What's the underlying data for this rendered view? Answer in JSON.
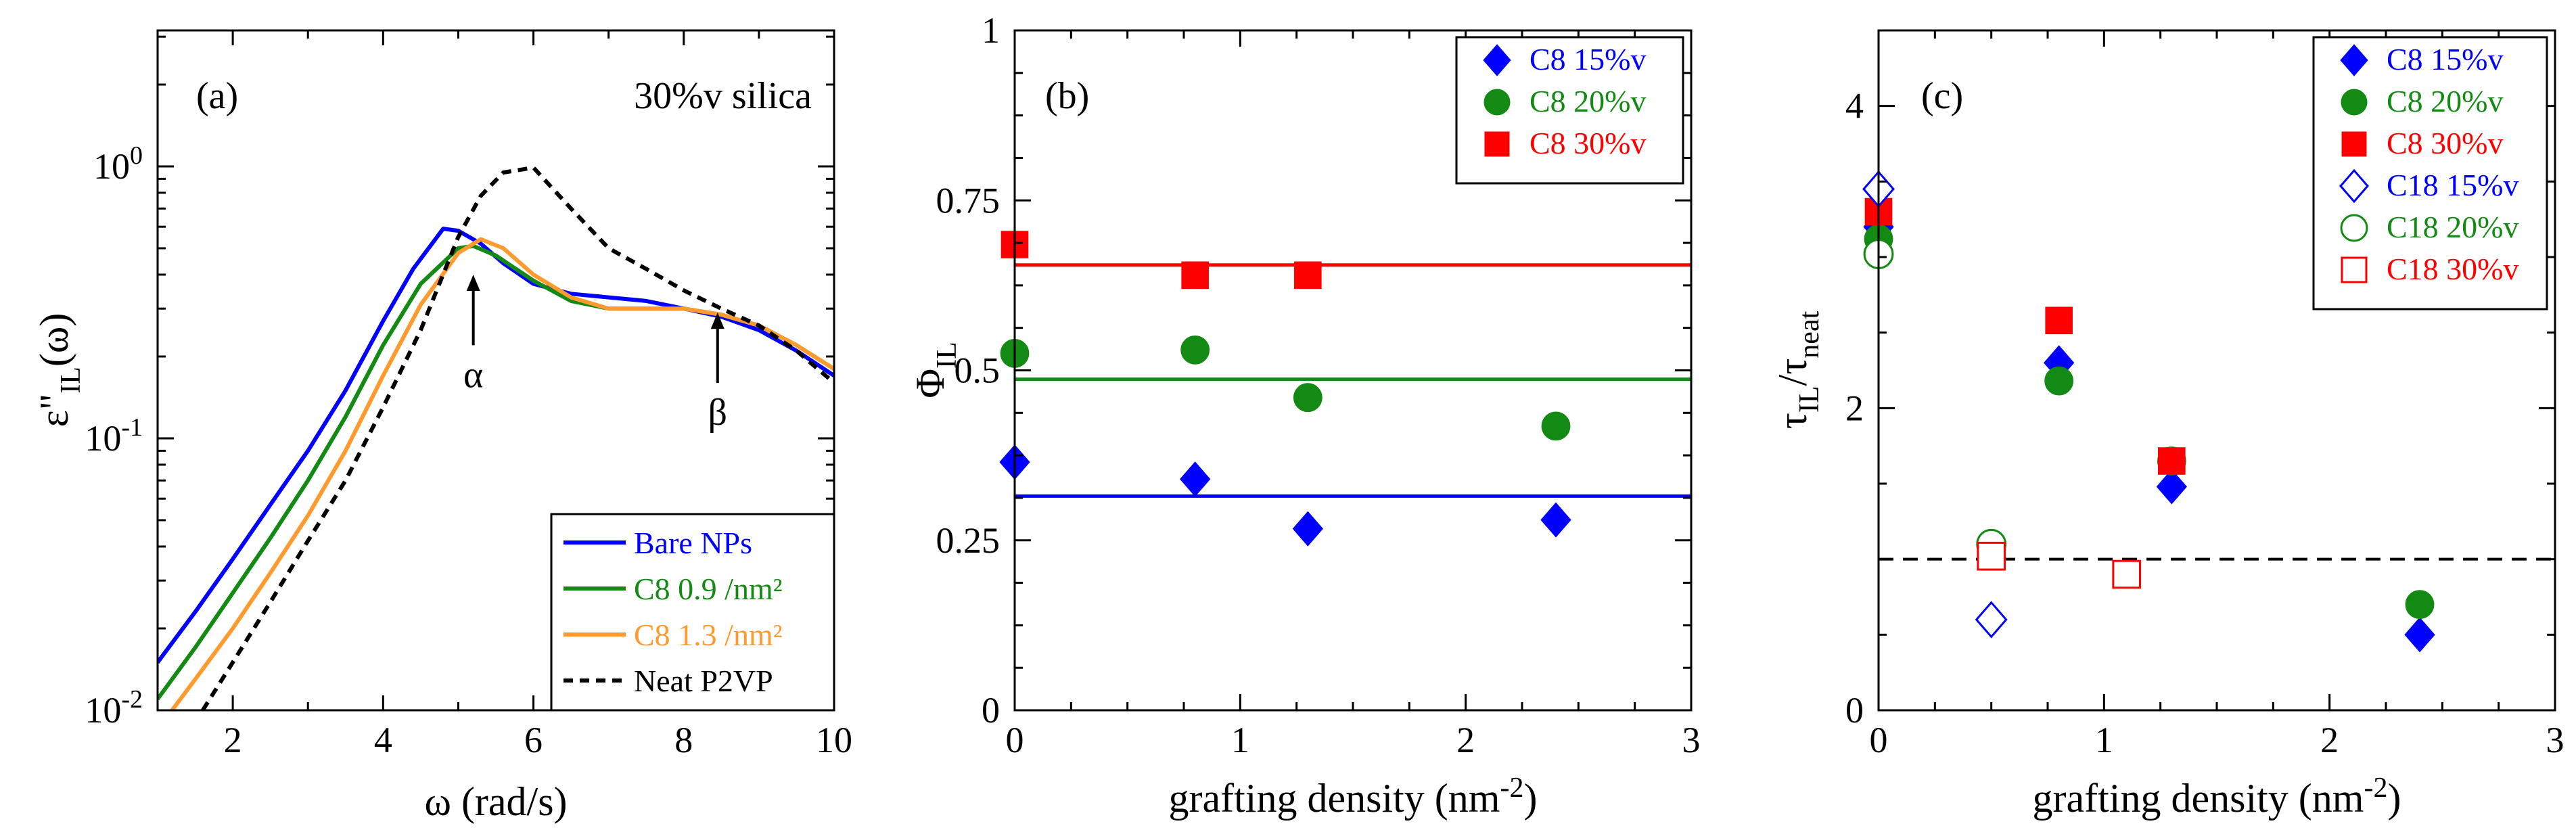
{
  "chart_data": [
    {
      "id": "a",
      "type": "line",
      "panel_label": "(a)",
      "annotation": "30%v silica",
      "xlabel": "ω (rad/s)",
      "ylabel_main": "ε\"",
      "ylabel_sub": "IL",
      "ylabel_tail": "(ω)",
      "xlim": [
        1,
        10
      ],
      "ylim_log10": [
        -2,
        0.5
      ],
      "yscale": "log",
      "x_ticks": [
        "2",
        "4",
        "6",
        "8",
        "10"
      ],
      "y_ticks": [
        {
          "base": "10",
          "exp": "0"
        },
        {
          "base": "10",
          "exp": "-1"
        },
        {
          "base": "10",
          "exp": "-2"
        }
      ],
      "arrows": [
        {
          "label": "α",
          "x": 5.2,
          "y_tip": 0.4,
          "y_tail": 0.22
        },
        {
          "label": "β",
          "x": 8.45,
          "y_tip": 0.29,
          "y_tail": 0.16
        }
      ],
      "legend_position": "bottom-right",
      "series": [
        {
          "name": "Bare NPs",
          "color": "#0000ff",
          "dash": "solid",
          "x": [
            1.0,
            1.5,
            2.0,
            2.5,
            3.0,
            3.5,
            4.0,
            4.4,
            4.8,
            5.0,
            5.3,
            5.6,
            6.0,
            6.5,
            7.0,
            7.5,
            8.0,
            8.5,
            9.0,
            9.5,
            10.0
          ],
          "y": [
            0.015,
            0.023,
            0.036,
            0.057,
            0.09,
            0.15,
            0.27,
            0.42,
            0.59,
            0.58,
            0.52,
            0.44,
            0.37,
            0.34,
            0.33,
            0.32,
            0.3,
            0.28,
            0.25,
            0.21,
            0.17
          ]
        },
        {
          "name": "C8 0.9 /nm²",
          "color": "#138a13",
          "dash": "solid",
          "x": [
            1.0,
            1.5,
            2.0,
            2.5,
            3.0,
            3.5,
            4.0,
            4.5,
            5.0,
            5.2,
            5.5,
            6.0,
            6.5,
            7.0,
            7.5,
            8.0,
            8.5,
            9.0,
            9.5,
            10.0
          ],
          "y": [
            0.011,
            0.017,
            0.027,
            0.043,
            0.07,
            0.12,
            0.22,
            0.37,
            0.5,
            0.51,
            0.47,
            0.38,
            0.32,
            0.3,
            0.3,
            0.3,
            0.285,
            0.26,
            0.22,
            0.18
          ]
        },
        {
          "name": "C8 1.3 /nm²",
          "color": "#ff9a2e",
          "dash": "solid",
          "x": [
            1.0,
            1.5,
            2.0,
            2.5,
            3.0,
            3.5,
            4.0,
            4.5,
            5.0,
            5.3,
            5.6,
            6.0,
            6.5,
            7.0,
            7.5,
            8.0,
            8.5,
            9.0,
            9.5,
            10.0
          ],
          "y": [
            0.0085,
            0.013,
            0.02,
            0.032,
            0.052,
            0.09,
            0.17,
            0.31,
            0.48,
            0.54,
            0.5,
            0.4,
            0.33,
            0.3,
            0.3,
            0.3,
            0.285,
            0.26,
            0.22,
            0.18
          ]
        },
        {
          "name": "Neat P2VP",
          "color": "#000000",
          "dash": "dashed",
          "x": [
            1.6,
            2.0,
            2.5,
            3.0,
            3.5,
            4.0,
            4.5,
            5.0,
            5.3,
            5.6,
            6.0,
            6.5,
            7.0,
            7.5,
            8.0,
            8.5,
            9.0,
            9.5,
            10.0
          ],
          "y": [
            0.01,
            0.015,
            0.025,
            0.042,
            0.07,
            0.13,
            0.25,
            0.55,
            0.78,
            0.95,
            0.99,
            0.7,
            0.5,
            0.42,
            0.35,
            0.3,
            0.26,
            0.21,
            0.16
          ]
        }
      ]
    },
    {
      "id": "b",
      "type": "scatter",
      "panel_label": "(b)",
      "xlabel": "grafting density (nm",
      "xlabel_sup": "-2",
      "xlabel_tail": ")",
      "ylabel": "Φ",
      "ylabel_sub": "IL",
      "xlim": [
        0,
        3
      ],
      "ylim": [
        0,
        1
      ],
      "x_ticks": [
        "0",
        "1",
        "2",
        "3"
      ],
      "y_ticks": [
        "0",
        "0.25",
        "0.5",
        "0.75",
        "1"
      ],
      "legend_position": "top-right",
      "hlines": [
        {
          "y": 0.315,
          "color": "#0000ff"
        },
        {
          "y": 0.487,
          "color": "#138a13"
        },
        {
          "y": 0.655,
          "color": "#ff0000"
        }
      ],
      "series": [
        {
          "name": "C8 15%v",
          "color": "#0000ff",
          "marker": "diamond",
          "filled": true,
          "x": [
            0,
            0.8,
            1.3,
            2.4
          ],
          "y": [
            0.365,
            0.34,
            0.267,
            0.28
          ]
        },
        {
          "name": "C8 20%v",
          "color": "#138a13",
          "marker": "circle",
          "filled": true,
          "x": [
            0,
            0.8,
            1.3,
            2.4
          ],
          "y": [
            0.525,
            0.53,
            0.46,
            0.418
          ]
        },
        {
          "name": "C8 30%v",
          "color": "#ff0000",
          "marker": "square",
          "filled": true,
          "x": [
            0,
            0.8,
            1.3
          ],
          "y": [
            0.685,
            0.64,
            0.64
          ]
        }
      ]
    },
    {
      "id": "c",
      "type": "scatter",
      "panel_label": "(c)",
      "xlabel": "grafting density (nm",
      "xlabel_sup": "-2",
      "xlabel_tail": ")",
      "ylabel_a": "τ",
      "ylabel_a_sub": "IL",
      "ylabel_mid": "/τ",
      "ylabel_b_sub": "neat",
      "xlim": [
        0,
        3
      ],
      "ylim": [
        0,
        4.5
      ],
      "x_ticks": [
        "0",
        "1",
        "2",
        "3"
      ],
      "y_ticks": [
        "0",
        "2",
        "4"
      ],
      "reference_line": {
        "y": 1.0,
        "style": "dashed",
        "color": "#000000"
      },
      "legend_position": "top-right",
      "series": [
        {
          "name": "C8 15%v",
          "color": "#0000ff",
          "marker": "diamond",
          "filled": true,
          "x": [
            0,
            0.8,
            1.3,
            2.4
          ],
          "y": [
            3.2,
            2.3,
            1.48,
            0.5
          ]
        },
        {
          "name": "C8 20%v",
          "color": "#138a13",
          "marker": "circle",
          "filled": true,
          "x": [
            0,
            0.8,
            1.3,
            2.4
          ],
          "y": [
            3.12,
            2.18,
            1.65,
            0.7
          ]
        },
        {
          "name": "C8 30%v",
          "color": "#ff0000",
          "marker": "square",
          "filled": true,
          "x": [
            0,
            0.8,
            1.3
          ],
          "y": [
            3.3,
            2.58,
            1.65
          ]
        },
        {
          "name": "C18 15%v",
          "color": "#0000ff",
          "marker": "diamond",
          "filled": false,
          "x": [
            0,
            0.5
          ],
          "y": [
            3.45,
            0.6
          ]
        },
        {
          "name": "C18 20%v",
          "color": "#138a13",
          "marker": "circle",
          "filled": false,
          "x": [
            0,
            0.5
          ],
          "y": [
            3.02,
            1.1
          ]
        },
        {
          "name": "C18 30%v",
          "color": "#ff0000",
          "marker": "square",
          "filled": false,
          "x": [
            0.5,
            1.1
          ],
          "y": [
            1.02,
            0.9
          ]
        }
      ]
    }
  ]
}
